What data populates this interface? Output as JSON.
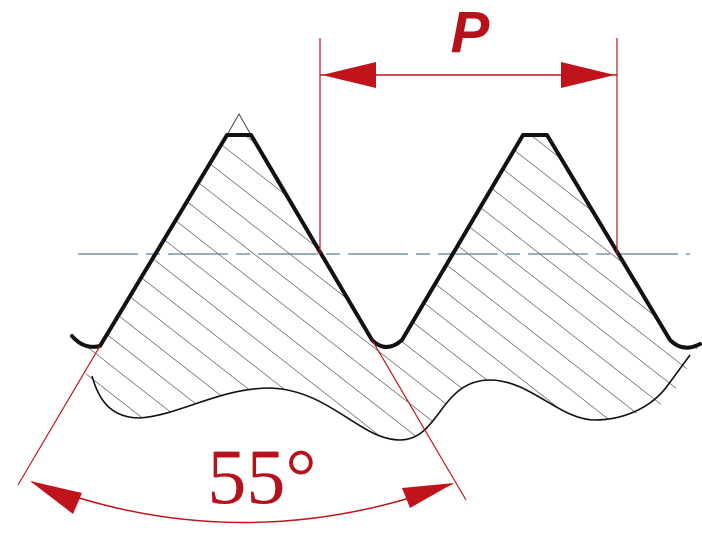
{
  "labels": {
    "pitch": "P",
    "angle": "55°"
  },
  "colors": {
    "background": "#ffffff",
    "profile": "#111111",
    "hatch": "#333333",
    "dimension": "#c0141c",
    "label": "#b5121b",
    "center_line": "#5b7f9a"
  }
}
